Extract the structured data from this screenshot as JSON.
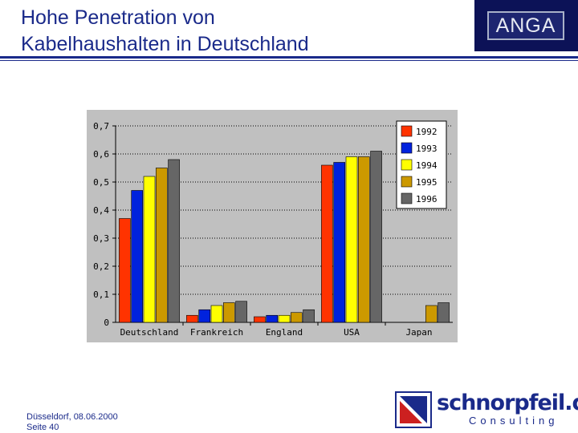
{
  "slide": {
    "title_line1": "Hohe Penetration von",
    "title_line2": "Kabelhaushalten in Deutschland",
    "logo_text": "ANGA",
    "footer_line1": "Düsseldorf, 08.06.2000",
    "footer_line2": "Seite 40",
    "brand_name": "schnorpfeil.de",
    "brand_sub": "Consulting"
  },
  "colors": {
    "title": "#1a2a8a",
    "plot_background": "#c0c0c0",
    "brand_red": "#cc2020"
  },
  "chart_data": {
    "type": "bar",
    "title": "",
    "xlabel": "",
    "ylabel": "",
    "ylim": [
      0,
      0.7
    ],
    "ytick_labels": [
      "0",
      "0,1",
      "0,2",
      "0,3",
      "0,4",
      "0,5",
      "0,6",
      "0,7"
    ],
    "ytick_values": [
      0,
      0.1,
      0.2,
      0.3,
      0.4,
      0.5,
      0.6,
      0.7
    ],
    "grid": true,
    "legend_position": "top-right",
    "categories": [
      "Deutschland",
      "Frankreich",
      "England",
      "USA",
      "Japan"
    ],
    "series": [
      {
        "name": "1992",
        "color": "#ff3300",
        "values": [
          0.37,
          0.025,
          0.02,
          0.56,
          null
        ]
      },
      {
        "name": "1993",
        "color": "#0022dd",
        "values": [
          0.47,
          0.045,
          0.025,
          0.57,
          null
        ]
      },
      {
        "name": "1994",
        "color": "#ffff00",
        "values": [
          0.52,
          0.06,
          0.025,
          0.59,
          null
        ]
      },
      {
        "name": "1995",
        "color": "#cc9900",
        "values": [
          0.55,
          0.07,
          0.035,
          0.59,
          0.06
        ]
      },
      {
        "name": "1996",
        "color": "#666666",
        "values": [
          0.58,
          0.075,
          0.045,
          0.61,
          0.07
        ]
      }
    ]
  }
}
